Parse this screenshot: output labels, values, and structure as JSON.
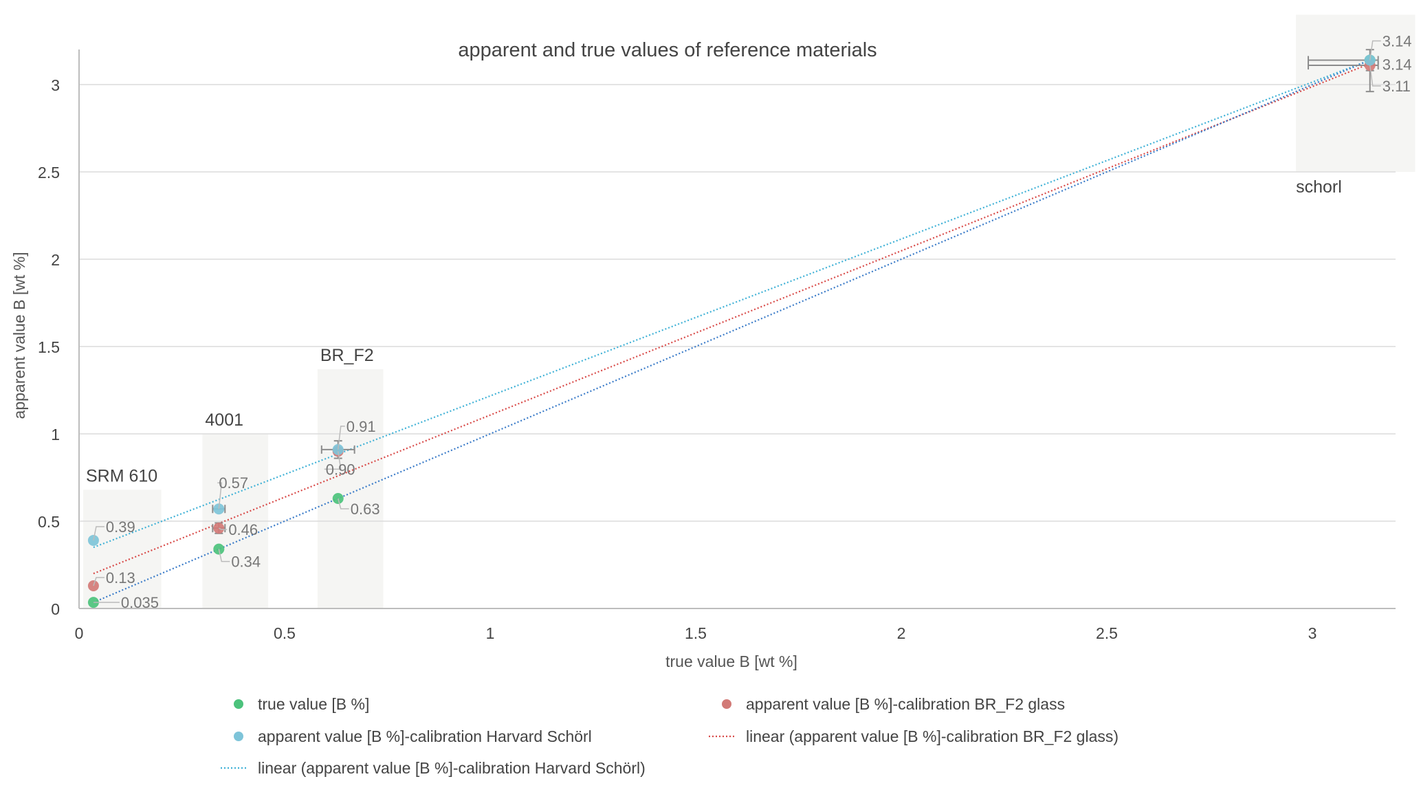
{
  "chart_data": {
    "type": "scatter",
    "title": "apparent and true values of reference materials",
    "xlabel": "true value B [wt %]",
    "ylabel": "apparent value B [wt %]",
    "xlim": [
      0,
      3.2
    ],
    "ylim": [
      0,
      3.2
    ],
    "x_ticks": [
      "0",
      "0.5",
      "1",
      "1.5",
      "2",
      "2.5",
      "3"
    ],
    "x_tick_values": [
      0,
      0.5,
      1,
      1.5,
      2,
      2.5,
      3
    ],
    "y_ticks": [
      "0",
      "0.5",
      "1",
      "1.5",
      "2",
      "2.5",
      "3"
    ],
    "y_tick_values": [
      0,
      0.5,
      1,
      1.5,
      2,
      2.5,
      3
    ],
    "grid": "horizontal",
    "legend_position": "bottom",
    "x": [
      0.035,
      0.34,
      0.63,
      3.14
    ],
    "categories": [
      {
        "name": "SRM 610",
        "x_range": [
          0.01,
          0.2
        ],
        "y_range": [
          0,
          0.68
        ]
      },
      {
        "name": "4001",
        "x_range": [
          0.3,
          0.46
        ],
        "y_range": [
          0,
          1.0
        ]
      },
      {
        "name": "BR_F2",
        "x_range": [
          0.58,
          0.74
        ],
        "y_range": [
          0,
          1.37
        ]
      },
      {
        "name": "schorl",
        "x_range": [
          2.96,
          3.25
        ],
        "y_range": [
          2.5,
          3.4
        ]
      }
    ],
    "series": [
      {
        "name": "true value [B %]",
        "color": "#4cc27c",
        "values": [
          0.035,
          0.34,
          0.63,
          3.14
        ],
        "labels": [
          "0.035",
          "0.34",
          "0.63",
          ""
        ]
      },
      {
        "name": "apparent value [B %]-calibration BR_F2 glass",
        "color": "#d27a77",
        "values": [
          0.13,
          0.46,
          0.9,
          3.11
        ],
        "labels": [
          "0.13",
          "0.46",
          "0.90",
          "3.11"
        ]
      },
      {
        "name": "apparent value [B %]-calibration Harvard Schörl",
        "color": "#7ec4d9",
        "values": [
          0.39,
          0.57,
          0.91,
          3.14
        ],
        "labels": [
          "0.39",
          "0.57",
          "0.91",
          "3.14"
        ]
      }
    ],
    "extra_label": "3.14",
    "trendlines": [
      {
        "name": "linear (apparent value [B %]-calibration BR_F2 glass)",
        "color": "#d84a48",
        "x": [
          0.035,
          3.14
        ],
        "y": [
          0.2,
          3.12
        ]
      },
      {
        "name": "linear (apparent value [B %]-calibration Harvard Schörl)",
        "color": "#3fb1d6",
        "x": [
          0.035,
          3.14
        ],
        "y": [
          0.35,
          3.14
        ]
      },
      {
        "name": "",
        "color": "#3a7bc8",
        "x": [
          0.035,
          3.14
        ],
        "y": [
          0.035,
          3.14
        ]
      }
    ],
    "error_bars": [
      {
        "x": 0.34,
        "y": 0.57,
        "xerr": 0.015,
        "yerr": 0
      },
      {
        "x": 0.34,
        "y": 0.46,
        "xerr": 0.015,
        "yerr": 0.03
      },
      {
        "x": 0.63,
        "y": 0.91,
        "xerr": 0.04,
        "yerr": 0.05
      },
      {
        "x": 3.14,
        "y": 3.14,
        "xerr_minus": 0.15,
        "xerr_plus": 0.02,
        "yerr": 0.06
      },
      {
        "x": 3.14,
        "y": 3.11,
        "xerr_minus": 0.15,
        "xerr_plus": 0.02,
        "yerr_minus": 0.15,
        "yerr_plus": 0.0
      }
    ]
  }
}
